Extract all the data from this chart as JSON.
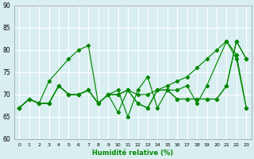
{
  "xlabel": "Humidité relative (%)",
  "xlim": [
    -0.5,
    23.5
  ],
  "ylim": [
    60,
    90
  ],
  "yticks": [
    60,
    65,
    70,
    75,
    80,
    85,
    90
  ],
  "xticks": [
    0,
    1,
    2,
    3,
    4,
    5,
    6,
    7,
    8,
    9,
    10,
    11,
    12,
    13,
    14,
    15,
    16,
    17,
    18,
    19,
    20,
    21,
    22,
    23
  ],
  "background_color": "#d8eef0",
  "grid_color": "#ffffff",
  "line_color": "#008800",
  "series": [
    {
      "x": [
        0,
        1,
        2,
        3,
        5,
        6,
        7,
        8,
        9,
        10,
        11,
        12,
        13,
        14,
        15,
        16,
        17,
        18,
        19,
        21,
        22,
        23
      ],
      "y": [
        67,
        69,
        68,
        73,
        78,
        80,
        81,
        68,
        70,
        71,
        65,
        71,
        74,
        67,
        71,
        71,
        72,
        68,
        72,
        82,
        78,
        67
      ]
    },
    {
      "x": [
        0,
        1,
        2,
        3,
        4,
        5,
        6,
        7,
        8,
        9,
        10,
        11,
        12,
        13,
        14,
        15,
        16,
        17,
        18,
        19,
        20,
        21,
        22,
        23
      ],
      "y": [
        67,
        69,
        68,
        68,
        72,
        70,
        70,
        71,
        68,
        70,
        70,
        71,
        70,
        70,
        71,
        72,
        73,
        74,
        76,
        78,
        80,
        82,
        79,
        67
      ]
    },
    {
      "x": [
        0,
        1,
        2,
        3,
        4,
        5,
        6,
        7,
        8,
        9,
        10,
        11,
        12,
        13,
        14,
        15,
        16,
        17,
        18,
        19,
        20,
        21,
        22,
        23
      ],
      "y": [
        67,
        69,
        68,
        68,
        72,
        70,
        70,
        71,
        68,
        70,
        70,
        71,
        68,
        67,
        71,
        71,
        69,
        69,
        69,
        69,
        69,
        72,
        82,
        78
      ]
    },
    {
      "x": [
        0,
        1,
        2,
        3,
        4,
        5,
        6,
        7,
        8,
        9,
        10,
        11,
        12,
        13,
        14,
        15,
        16,
        17,
        18,
        19,
        20,
        21,
        22,
        23
      ],
      "y": [
        67,
        69,
        68,
        68,
        72,
        70,
        70,
        71,
        68,
        70,
        66,
        71,
        68,
        67,
        71,
        71,
        69,
        69,
        69,
        69,
        69,
        72,
        82,
        78
      ]
    }
  ]
}
